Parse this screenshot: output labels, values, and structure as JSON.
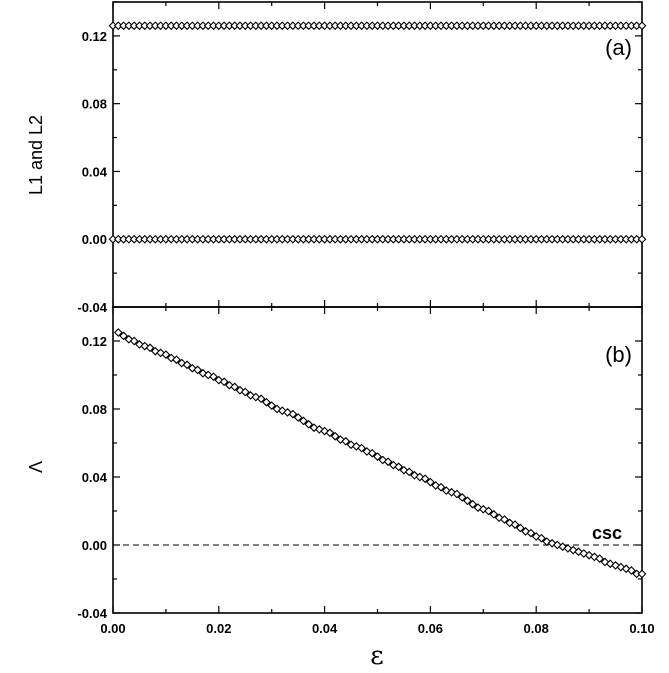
{
  "chart_data": [
    {
      "type": "scatter",
      "panel_label": "(a)",
      "ylabel": "L1 and L2",
      "xlabel": "",
      "xlim": [
        0.0,
        0.1
      ],
      "ylim": [
        -0.04,
        0.14
      ],
      "yticks": [
        "-0.04",
        "0.00",
        "0.04",
        "0.08",
        "0.12"
      ],
      "grid": false,
      "series": [
        {
          "marker": "open-diamond",
          "x_range": [
            0.0,
            0.1
          ],
          "n_points": 101,
          "y_constant": 0.126
        },
        {
          "marker": "open-diamond",
          "x_range": [
            0.0,
            0.1
          ],
          "n_points": 101,
          "y_constant": 0.0
        }
      ]
    },
    {
      "type": "line",
      "panel_label": "(b)",
      "ylabel": "Λ",
      "xlabel": "ε",
      "xlim": [
        0.0,
        0.1
      ],
      "ylim": [
        -0.04,
        0.14
      ],
      "xticks": [
        "0.00",
        "0.02",
        "0.04",
        "0.06",
        "0.08",
        "0.10"
      ],
      "yticks": [
        "-0.04",
        "0.00",
        "0.04",
        "0.08",
        "0.12"
      ],
      "grid": false,
      "series": [
        {
          "marker": "open-diamond-line",
          "x": [
            0.001,
            0.002,
            0.003,
            0.004,
            0.005,
            0.006,
            0.007,
            0.008,
            0.009,
            0.01,
            0.011,
            0.012,
            0.013,
            0.014,
            0.015,
            0.016,
            0.017,
            0.018,
            0.019,
            0.02,
            0.021,
            0.022,
            0.023,
            0.024,
            0.025,
            0.026,
            0.027,
            0.028,
            0.029,
            0.03,
            0.031,
            0.032,
            0.033,
            0.034,
            0.035,
            0.036,
            0.037,
            0.038,
            0.039,
            0.04,
            0.041,
            0.042,
            0.043,
            0.044,
            0.045,
            0.046,
            0.047,
            0.048,
            0.049,
            0.05,
            0.051,
            0.052,
            0.053,
            0.054,
            0.055,
            0.056,
            0.057,
            0.058,
            0.059,
            0.06,
            0.061,
            0.062,
            0.063,
            0.064,
            0.065,
            0.066,
            0.067,
            0.068,
            0.069,
            0.07,
            0.071,
            0.072,
            0.073,
            0.074,
            0.075,
            0.076,
            0.077,
            0.078,
            0.079,
            0.08,
            0.081,
            0.082,
            0.083,
            0.084,
            0.085,
            0.086,
            0.087,
            0.088,
            0.089,
            0.09,
            0.091,
            0.092,
            0.093,
            0.094,
            0.095,
            0.096,
            0.097,
            0.098,
            0.099,
            0.1
          ],
          "y": [
            0.125,
            0.123,
            0.121,
            0.12,
            0.118,
            0.117,
            0.116,
            0.114,
            0.113,
            0.112,
            0.11,
            0.109,
            0.107,
            0.106,
            0.104,
            0.103,
            0.101,
            0.1,
            0.099,
            0.097,
            0.096,
            0.094,
            0.093,
            0.091,
            0.09,
            0.088,
            0.087,
            0.086,
            0.084,
            0.082,
            0.08,
            0.079,
            0.078,
            0.077,
            0.075,
            0.073,
            0.071,
            0.069,
            0.068,
            0.067,
            0.066,
            0.064,
            0.062,
            0.061,
            0.059,
            0.058,
            0.057,
            0.055,
            0.054,
            0.052,
            0.05,
            0.049,
            0.047,
            0.046,
            0.044,
            0.043,
            0.041,
            0.04,
            0.039,
            0.037,
            0.035,
            0.034,
            0.032,
            0.031,
            0.03,
            0.028,
            0.026,
            0.024,
            0.022,
            0.021,
            0.02,
            0.018,
            0.016,
            0.015,
            0.013,
            0.012,
            0.01,
            0.008,
            0.007,
            0.005,
            0.004,
            0.002,
            0.001,
            0.0,
            -0.001,
            -0.002,
            -0.003,
            -0.004,
            -0.005,
            -0.006,
            -0.007,
            -0.008,
            -0.01,
            -0.011,
            -0.012,
            -0.013,
            -0.014,
            -0.015,
            -0.017,
            -0.017
          ]
        }
      ],
      "reference_line": {
        "y": 0.0,
        "style": "dashed"
      },
      "annotation": "csc"
    }
  ]
}
